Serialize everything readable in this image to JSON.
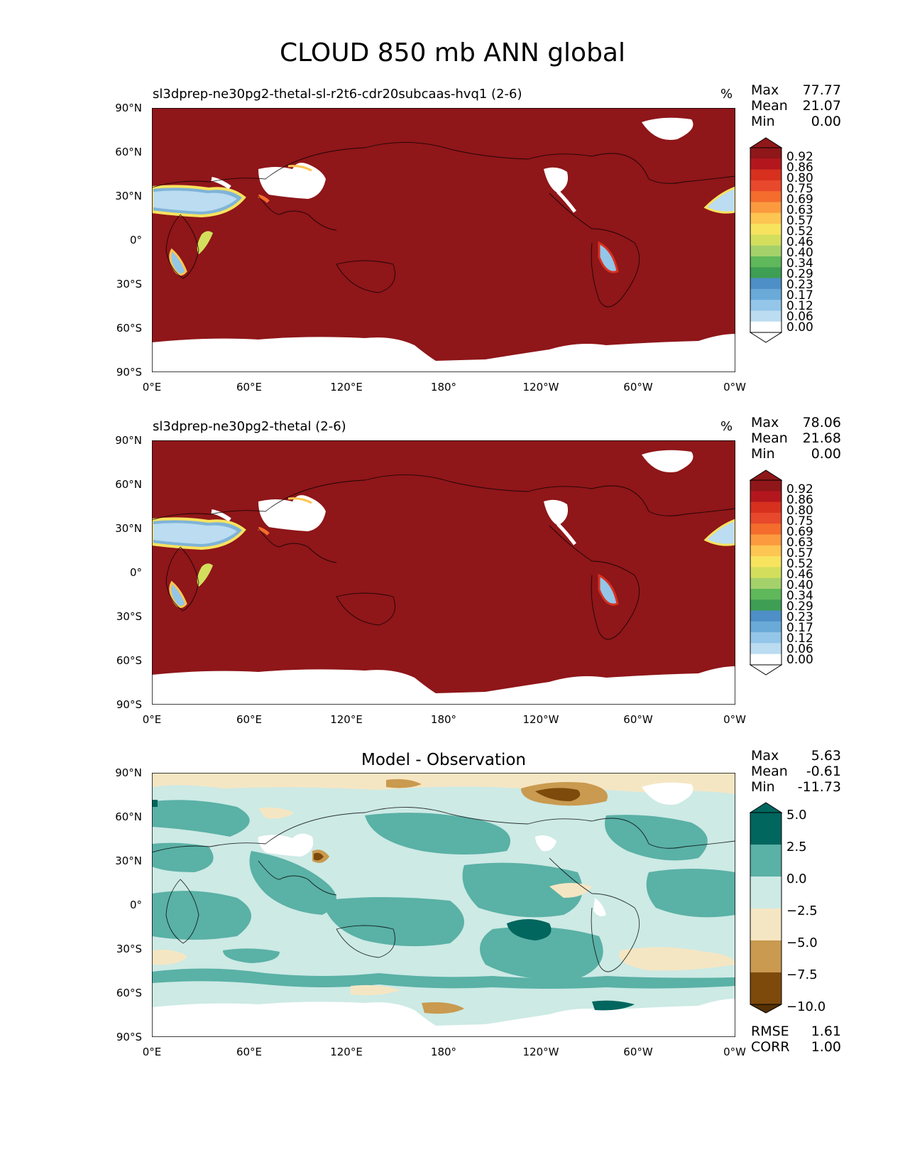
{
  "figure_title": "CLOUD 850 mb ANN global",
  "x_ticks": [
    "0°E",
    "60°E",
    "120°E",
    "180°",
    "120°W",
    "60°W",
    "0°W"
  ],
  "y_ticks": [
    "90°N",
    "60°N",
    "30°N",
    "0°",
    "30°S",
    "60°S",
    "90°S"
  ],
  "colors": {
    "cloud_background": "#8f1619",
    "diff_light": "#cdeae5",
    "diff_mid": "#5ab1a6",
    "diff_dark": "#01665e",
    "diff_tan": "#f5e6c3",
    "diff_brown": "#c99a4f",
    "diff_darkbrown": "#7d4a0c"
  },
  "panels": [
    {
      "title": "sl3dprep-ne30pg2-thetal-sl-r2t6-cdr20subcaas-hvq1 (2-6)",
      "units": "%",
      "stats": [
        {
          "label": "Max",
          "value": "77.77"
        },
        {
          "label": "Mean",
          "value": "21.07"
        },
        {
          "label": "Min",
          "value": "0.00"
        }
      ],
      "colorbar_labels": [
        "0.92",
        "0.86",
        "0.80",
        "0.75",
        "0.69",
        "0.63",
        "0.57",
        "0.52",
        "0.46",
        "0.40",
        "0.34",
        "0.29",
        "0.23",
        "0.17",
        "0.12",
        "0.06",
        "0.00"
      ]
    },
    {
      "title": "sl3dprep-ne30pg2-thetal (2-6)",
      "units": "%",
      "stats": [
        {
          "label": "Max",
          "value": "78.06"
        },
        {
          "label": "Mean",
          "value": "21.68"
        },
        {
          "label": "Min",
          "value": "0.00"
        }
      ],
      "colorbar_labels": [
        "0.92",
        "0.86",
        "0.80",
        "0.75",
        "0.69",
        "0.63",
        "0.57",
        "0.52",
        "0.46",
        "0.40",
        "0.34",
        "0.29",
        "0.23",
        "0.17",
        "0.12",
        "0.06",
        "0.00"
      ]
    },
    {
      "title": "Model - Observation",
      "stats": [
        {
          "label": "Max",
          "value": "5.63"
        },
        {
          "label": "Mean",
          "value": "-0.61"
        },
        {
          "label": "Min",
          "value": "-11.73"
        }
      ],
      "colorbar_labels": [
        "5.0",
        "2.5",
        "0.0",
        "−2.5",
        "−5.0",
        "−7.5",
        "−10.0"
      ],
      "extra_stats": [
        {
          "label": "RMSE",
          "value": "1.61"
        },
        {
          "label": "CORR",
          "value": "1.00"
        }
      ]
    }
  ],
  "cloud_colorbar_colors": [
    "#8f1619",
    "#b3171d",
    "#d7301f",
    "#e8482c",
    "#f46d2d",
    "#fb9a3e",
    "#fdc551",
    "#f8e35f",
    "#d3df5c",
    "#a5d16b",
    "#5fb85a",
    "#3e9e53",
    "#4d8fc6",
    "#6aaad8",
    "#93c6e8",
    "#bbdcf1",
    "#ffffff"
  ],
  "diff_colorbar_colors": [
    "#01665e",
    "#5ab1a6",
    "#cdeae5",
    "#f5e6c3",
    "#c99a4f",
    "#7d4a0c"
  ]
}
